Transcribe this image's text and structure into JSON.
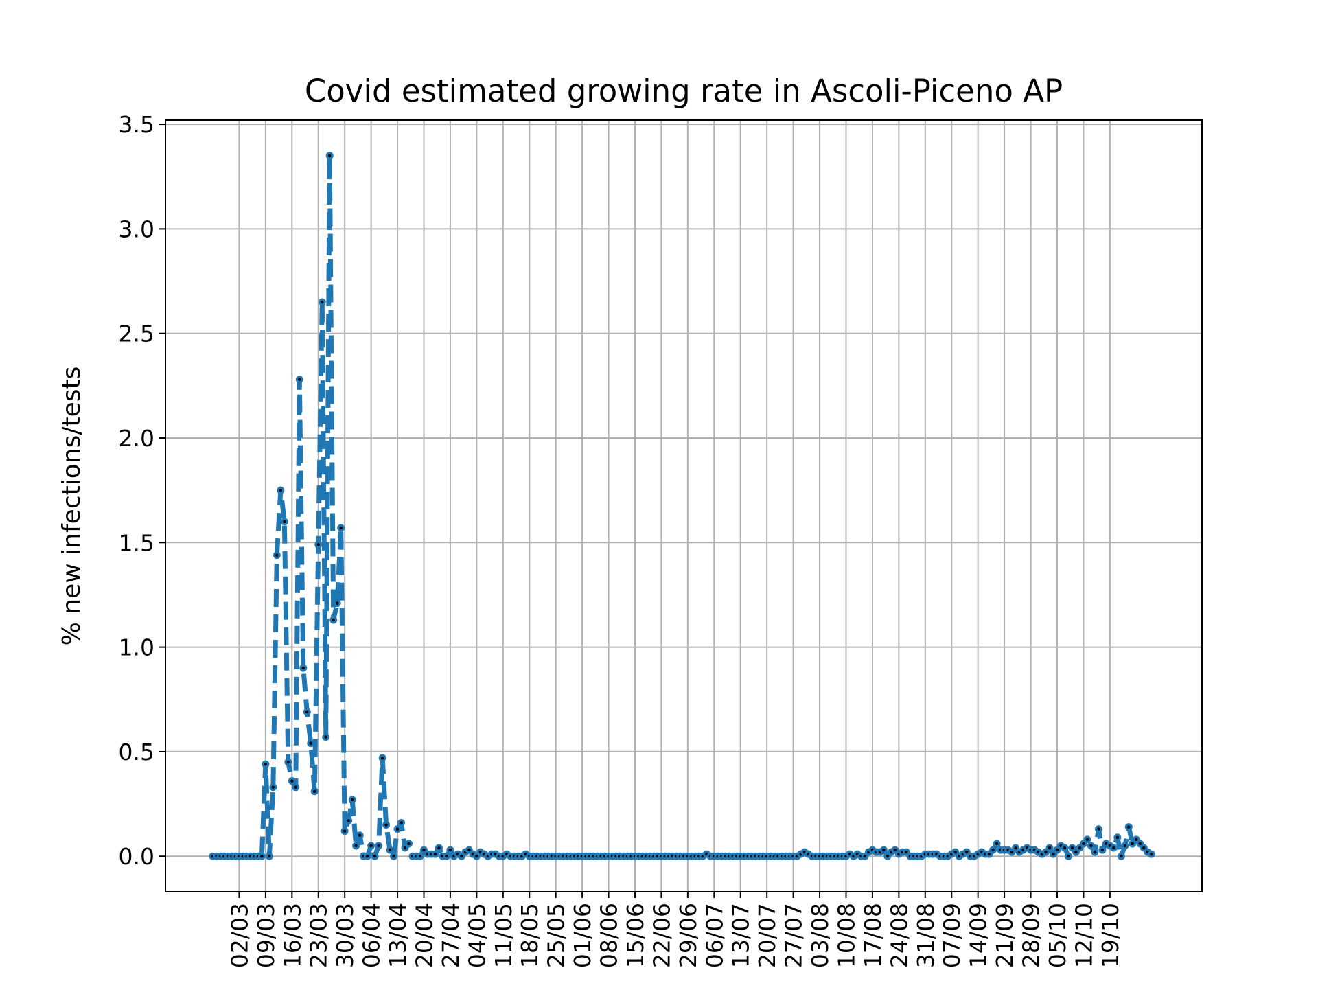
{
  "chart_data": {
    "type": "line",
    "title": "Covid estimated growing rate in Ascoli-Piceno AP",
    "xlabel": "",
    "ylabel": "% new infections/tests",
    "ylim": [
      -0.17,
      3.52
    ],
    "grid": true,
    "legend": "none",
    "colors": {
      "line": "#1f77b4",
      "marker_edge": "#1f77b4",
      "marker_center": "#000000",
      "grid": "#b0b0b0"
    },
    "x_ticks": [
      "02/03",
      "09/03",
      "16/03",
      "23/03",
      "30/03",
      "06/04",
      "13/04",
      "20/04",
      "27/04",
      "04/05",
      "11/05",
      "18/05",
      "25/05",
      "01/06",
      "08/06",
      "15/06",
      "22/06",
      "29/06",
      "06/07",
      "13/07",
      "20/07",
      "27/07",
      "03/08",
      "10/08",
      "17/08",
      "24/08",
      "31/08",
      "07/09",
      "14/09",
      "21/09",
      "28/09",
      "05/10",
      "12/10",
      "19/10"
    ],
    "y_ticks": [
      "0.0",
      "0.5",
      "1.0",
      "1.5",
      "2.0",
      "2.5",
      "3.0",
      "3.5"
    ],
    "y_tick_values": [
      0,
      0.5,
      1.0,
      1.5,
      2.0,
      2.5,
      3.0,
      3.5
    ],
    "x_start": "24/02",
    "x_end": "19/10",
    "series": [
      {
        "values": [
          0,
          0,
          0,
          0,
          0,
          0,
          0,
          0,
          0,
          0,
          0,
          0,
          0,
          0,
          0.44,
          0,
          0.33,
          1.44,
          1.75,
          1.6,
          0.45,
          0.36,
          0.33,
          2.28,
          0.9,
          0.69,
          0.54,
          0.31,
          1.49,
          2.65,
          0.57,
          3.35,
          1.13,
          1.21,
          1.57,
          0.12,
          0.17,
          0.27,
          0.05,
          0.1,
          0,
          0,
          0.05,
          0,
          0.05,
          0.47,
          0.15,
          0.03,
          0,
          0.13,
          0.16,
          0.04,
          0.06,
          0,
          0,
          0,
          0.03,
          0.01,
          0.01,
          0.01,
          0.04,
          0,
          0,
          0.03,
          0,
          0.01,
          0,
          0.02,
          0.03,
          0.01,
          0,
          0.02,
          0.01,
          0,
          0.01,
          0.01,
          0,
          0,
          0.01,
          0,
          0,
          0,
          0,
          0.01,
          0,
          0,
          0,
          0,
          0,
          0,
          0,
          0,
          0,
          0,
          0,
          0,
          0,
          0,
          0,
          0,
          0,
          0,
          0,
          0,
          0,
          0,
          0,
          0,
          0,
          0,
          0,
          0,
          0,
          0,
          0,
          0,
          0,
          0,
          0,
          0,
          0,
          0,
          0,
          0,
          0,
          0,
          0,
          0,
          0,
          0,
          0,
          0.01,
          0,
          0,
          0,
          0,
          0,
          0,
          0,
          0,
          0,
          0,
          0,
          0,
          0,
          0,
          0,
          0,
          0,
          0,
          0,
          0,
          0,
          0,
          0,
          0,
          0.01,
          0.02,
          0.01,
          0,
          0,
          0,
          0,
          0,
          0,
          0,
          0,
          0,
          0,
          0.01,
          0,
          0.01,
          0,
          0,
          0.02,
          0.03,
          0.02,
          0.02,
          0.03,
          0,
          0.02,
          0.03,
          0.01,
          0.02,
          0.02,
          0,
          0,
          0,
          0,
          0.01,
          0.01,
          0.01,
          0.01,
          0,
          0,
          0,
          0.01,
          0.02,
          0,
          0.01,
          0.02,
          0,
          0,
          0.01,
          0.02,
          0.01,
          0.01,
          0.03,
          0.06,
          0.03,
          0.03,
          0.03,
          0.02,
          0.04,
          0.02,
          0.03,
          0.04,
          0.03,
          0.03,
          0.02,
          0.01,
          0.02,
          0.04,
          0.01,
          0.03,
          0.05,
          0.04,
          0,
          0.04,
          0.02,
          0.04,
          0.06,
          0.08,
          0.05,
          0.02,
          0.13,
          0.03,
          0.06,
          0.05,
          0.04,
          0.09,
          0,
          0.05,
          0.14,
          0.06,
          0.08,
          0.06,
          0.04,
          0.02,
          0.01
        ]
      }
    ]
  }
}
